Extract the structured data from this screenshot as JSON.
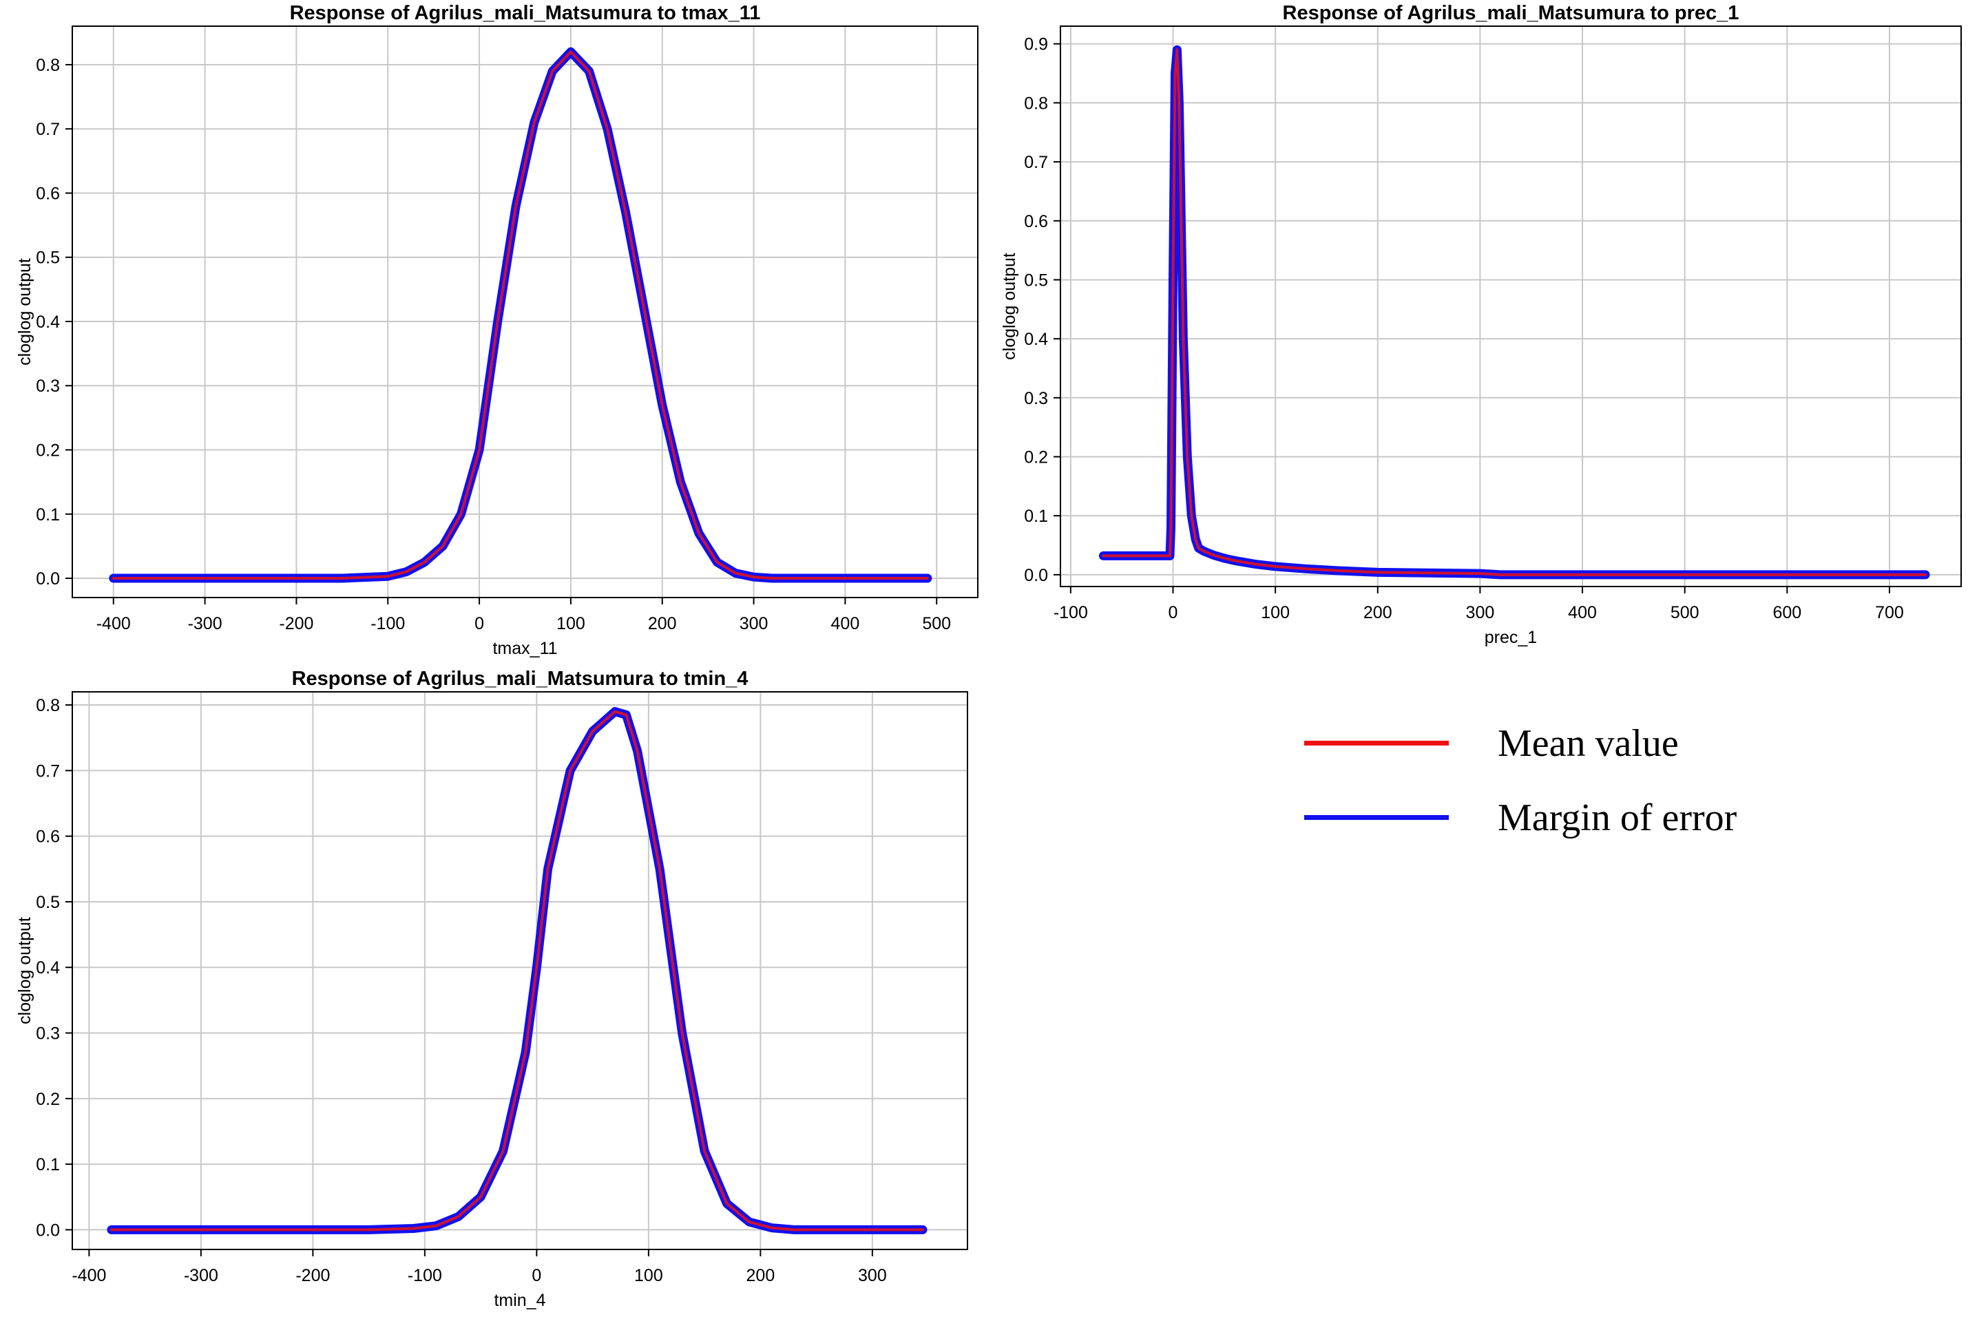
{
  "colors": {
    "mean": "#ee1111",
    "error": "#1111ee",
    "grid": "#c8c8c8",
    "axis": "#000000"
  },
  "legend": [
    {
      "label": "Mean value",
      "color": "#ee1111"
    },
    {
      "label": "Margin of error",
      "color": "#1111ee"
    }
  ],
  "chart_data": [
    {
      "type": "line",
      "title": "Response of Agrilus_mali_Matsumura to tmax_11",
      "xlabel": "tmax_11",
      "ylabel": "cloglog output",
      "xlim": [
        -445,
        545
      ],
      "ylim": [
        -0.03,
        0.86
      ],
      "xticks": [
        -400,
        -300,
        -200,
        -100,
        0,
        100,
        200,
        300,
        400,
        500
      ],
      "yticks": [
        "0.0",
        "0.1",
        "0.2",
        "0.3",
        "0.4",
        "0.5",
        "0.6",
        "0.7",
        "0.8"
      ],
      "grid": true,
      "series": [
        {
          "name": "Mean value",
          "x": [
            -400,
            -150,
            -100,
            -80,
            -60,
            -40,
            -20,
            0,
            20,
            40,
            60,
            80,
            100,
            120,
            140,
            160,
            180,
            200,
            220,
            240,
            260,
            280,
            300,
            320,
            350,
            400,
            490
          ],
          "y": [
            0.0,
            0.0,
            0.003,
            0.01,
            0.025,
            0.05,
            0.1,
            0.2,
            0.4,
            0.58,
            0.71,
            0.79,
            0.82,
            0.79,
            0.7,
            0.57,
            0.42,
            0.27,
            0.15,
            0.07,
            0.025,
            0.008,
            0.002,
            0.0,
            0.0,
            0.0,
            0.0
          ]
        }
      ]
    },
    {
      "type": "line",
      "title": "Response of Agrilus_mali_Matsumura to prec_1",
      "xlabel": "prec_1",
      "ylabel": "cloglog output",
      "xlim": [
        -110,
        770
      ],
      "ylim": [
        -0.02,
        0.93
      ],
      "xticks": [
        -100,
        0,
        100,
        200,
        300,
        400,
        500,
        600,
        700
      ],
      "yticks": [
        "0.0",
        "0.1",
        "0.2",
        "0.3",
        "0.4",
        "0.5",
        "0.6",
        "0.7",
        "0.8",
        "0.9"
      ],
      "grid": true,
      "series": [
        {
          "name": "Mean value",
          "x": [
            -68,
            -3,
            -2,
            0,
            2,
            4,
            6,
            8,
            10,
            14,
            18,
            22,
            25,
            30,
            40,
            50,
            60,
            80,
            100,
            130,
            160,
            200,
            250,
            300,
            320,
            400,
            500,
            600,
            735
          ],
          "y": [
            0.032,
            0.032,
            0.08,
            0.5,
            0.85,
            0.89,
            0.8,
            0.6,
            0.4,
            0.2,
            0.1,
            0.06,
            0.045,
            0.04,
            0.033,
            0.028,
            0.024,
            0.018,
            0.014,
            0.01,
            0.007,
            0.004,
            0.003,
            0.002,
            0.0,
            0.0,
            0.0,
            0.0,
            0.0
          ]
        }
      ]
    },
    {
      "type": "line",
      "title": "Response of Agrilus_mali_Matsumura to tmin_4",
      "xlabel": "tmin_4",
      "ylabel": "cloglog output",
      "xlim": [
        -415,
        385
      ],
      "ylim": [
        -0.03,
        0.82
      ],
      "xticks": [
        -400,
        -300,
        -200,
        -100,
        0,
        100,
        200,
        300
      ],
      "yticks": [
        "0.0",
        "0.1",
        "0.2",
        "0.3",
        "0.4",
        "0.5",
        "0.6",
        "0.7",
        "0.8"
      ],
      "grid": true,
      "series": [
        {
          "name": "Mean value",
          "x": [
            -380,
            -150,
            -110,
            -90,
            -70,
            -50,
            -30,
            -10,
            0,
            10,
            30,
            50,
            70,
            80,
            90,
            110,
            130,
            150,
            170,
            190,
            210,
            230,
            250,
            300,
            345
          ],
          "y": [
            0.0,
            0.0,
            0.002,
            0.006,
            0.02,
            0.05,
            0.12,
            0.27,
            0.4,
            0.55,
            0.7,
            0.76,
            0.79,
            0.785,
            0.73,
            0.55,
            0.3,
            0.12,
            0.04,
            0.012,
            0.003,
            0.0,
            0.0,
            0.0,
            0.0
          ]
        }
      ]
    }
  ]
}
